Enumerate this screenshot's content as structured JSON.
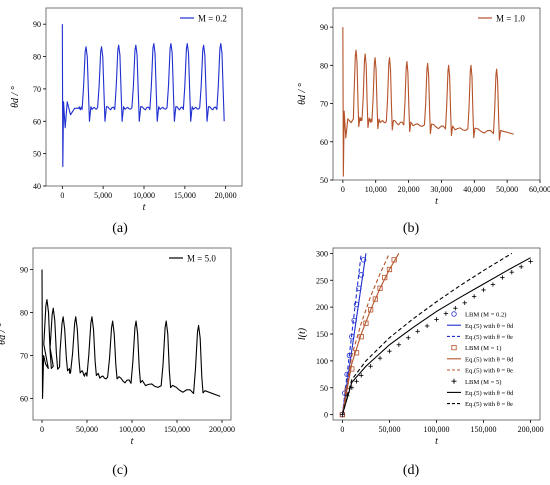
{
  "colors": {
    "blue": "#1f2fd0",
    "brown": "#b5522a",
    "black": "#000000",
    "axis": "#000000",
    "frame": "#555555"
  },
  "chart_data": [
    {
      "panel_label": "(a)",
      "type": "line",
      "xlabel": "t",
      "ylabel": "θd / °",
      "xlim": [
        -2000,
        22000
      ],
      "ylim": [
        40,
        95
      ],
      "xticks": [
        0,
        5000,
        10000,
        15000,
        20000
      ],
      "xtick_labels": [
        "0",
        "5,000",
        "10,000",
        "15,000",
        "20,000"
      ],
      "yticks": [
        40,
        50,
        60,
        70,
        80,
        90
      ],
      "ytick_labels": [
        "40",
        "50",
        "60",
        "70",
        "80",
        "90"
      ],
      "legend_position": "top-right",
      "series": [
        {
          "name": "M = 0.2",
          "color": "blue",
          "startup": [
            [
              0,
              90
            ],
            [
              60,
              46
            ],
            [
              150,
              66
            ],
            [
              350,
              58
            ],
            [
              600,
              66
            ],
            [
              1000,
              62
            ],
            [
              1500,
              64
            ],
            [
              2000,
              64
            ]
          ],
          "baseline": 64,
          "t_end": 19000,
          "peaks": [
            {
              "t": 2900,
              "v": 83
            },
            {
              "t": 4800,
              "v": 83
            },
            {
              "t": 6900,
              "v": 83.5
            },
            {
              "t": 9000,
              "v": 83.5
            },
            {
              "t": 11200,
              "v": 84
            },
            {
              "t": 13300,
              "v": 84
            },
            {
              "t": 15300,
              "v": 84
            },
            {
              "t": 17300,
              "v": 83.5
            },
            {
              "t": 19400,
              "v": 84
            }
          ],
          "peak_width": 300,
          "dip_depth": 4
        }
      ]
    },
    {
      "panel_label": "(b)",
      "type": "line",
      "xlabel": "t",
      "ylabel": "θd / °",
      "xlim": [
        -3000,
        60000
      ],
      "ylim": [
        50,
        95
      ],
      "xticks": [
        0,
        10000,
        20000,
        30000,
        40000,
        50000,
        60000
      ],
      "xtick_labels": [
        "0",
        "10,000",
        "20,000",
        "30,000",
        "40,000",
        "50,000",
        "60,000"
      ],
      "yticks": [
        50,
        60,
        70,
        80,
        90
      ],
      "ytick_labels": [
        "50",
        "60",
        "70",
        "80",
        "90"
      ],
      "legend_position": "top-right",
      "series": [
        {
          "name": "M = 1.0",
          "color": "brown",
          "startup": [
            [
              0,
              90
            ],
            [
              150,
              51
            ],
            [
              400,
              68
            ],
            [
              900,
              61
            ],
            [
              1500,
              66
            ],
            [
              2500,
              65
            ],
            [
              3200,
              66
            ]
          ],
          "baseline_start": 66,
          "baseline_end": 62,
          "t_end": 52000,
          "peaks": [
            {
              "t": 4000,
              "v": 84
            },
            {
              "t": 6800,
              "v": 83
            },
            {
              "t": 9800,
              "v": 82
            },
            {
              "t": 14200,
              "v": 82
            },
            {
              "t": 19500,
              "v": 81
            },
            {
              "t": 25800,
              "v": 80.5
            },
            {
              "t": 32200,
              "v": 80
            },
            {
              "t": 39000,
              "v": 80
            },
            {
              "t": 46800,
              "v": 79
            }
          ],
          "peak_width": 600,
          "dip_depth": 2
        }
      ]
    },
    {
      "panel_label": "(c)",
      "type": "line",
      "xlabel": "t",
      "ylabel": "θd / °",
      "xlim": [
        -10000,
        210000
      ],
      "ylim": [
        55,
        95
      ],
      "xticks": [
        0,
        50000,
        100000,
        150000,
        200000
      ],
      "xtick_labels": [
        "0",
        "50,000",
        "100,000",
        "150,000",
        "200,000"
      ],
      "yticks": [
        60,
        70,
        80,
        90
      ],
      "ytick_labels": [
        "60",
        "70",
        "80",
        "90"
      ],
      "legend_position": "top-right",
      "series": [
        {
          "name": "M = 5.0",
          "color": "black",
          "startup": [
            [
              0,
              90
            ],
            [
              600,
              60
            ],
            [
              1800,
              70
            ],
            [
              4000,
              68
            ],
            [
              7000,
              67
            ]
          ],
          "baseline_start": 67,
          "baseline_end": 60.5,
          "t_end": 198000,
          "peaks": [
            {
              "t": 5500,
              "v": 83
            },
            {
              "t": 12500,
              "v": 81
            },
            {
              "t": 23500,
              "v": 79
            },
            {
              "t": 37500,
              "v": 79
            },
            {
              "t": 55500,
              "v": 79
            },
            {
              "t": 78500,
              "v": 78
            },
            {
              "t": 104500,
              "v": 78
            },
            {
              "t": 138000,
              "v": 78
            },
            {
              "t": 174000,
              "v": 77
            }
          ],
          "peak_width": 3500,
          "dip_depth": 0
        }
      ]
    },
    {
      "panel_label": "(d)",
      "type": "line",
      "xlabel": "t",
      "ylabel": "l(t)",
      "xlim": [
        -10000,
        210000
      ],
      "ylim": [
        -10,
        310
      ],
      "xticks": [
        0,
        50000,
        100000,
        150000,
        200000
      ],
      "xtick_labels": [
        "0",
        "50,000",
        "100,000",
        "150,000",
        "200,000"
      ],
      "yticks": [
        0,
        50,
        100,
        150,
        200,
        250,
        300
      ],
      "ytick_labels": [
        "0",
        "50",
        "100",
        "150",
        "200",
        "250",
        "300"
      ],
      "legend_position": "bottom-right",
      "series": [
        {
          "name": "LBM (M = 0.2)",
          "color": "blue",
          "style": "marker-circle",
          "x": [
            0,
            2500,
            5000,
            7500,
            10000,
            12500,
            15000,
            17500,
            20000,
            22500
          ],
          "y": [
            0,
            40,
            75,
            110,
            145,
            175,
            205,
            235,
            260,
            288
          ]
        },
        {
          "name": "Eq.(5) with θ = θd",
          "color": "blue",
          "style": "solid",
          "x": [
            0,
            25000
          ],
          "y": [
            0,
            300
          ]
        },
        {
          "name": "Eq.(5) with θ = θe",
          "color": "blue",
          "style": "dashed",
          "x": [
            0,
            20000
          ],
          "y": [
            0,
            300
          ]
        },
        {
          "name": "LBM (M = 1)",
          "color": "brown",
          "style": "marker-square",
          "x": [
            0,
            5000,
            10000,
            15000,
            20000,
            25000,
            30000,
            35000,
            40000,
            45000,
            50000,
            55000
          ],
          "y": [
            0,
            45,
            85,
            115,
            145,
            170,
            195,
            215,
            235,
            255,
            270,
            288
          ]
        },
        {
          "name": "Eq.(5) with θ = θd",
          "color": "brown",
          "style": "solid",
          "x": [
            0,
            10000,
            20000,
            30000,
            40000,
            50000,
            60000
          ],
          "y": [
            0,
            95,
            150,
            195,
            235,
            270,
            300
          ]
        },
        {
          "name": "Eq.(5) with θ = θe",
          "color": "brown",
          "style": "dashed",
          "x": [
            0,
            10000,
            20000,
            30000,
            40000,
            50000
          ],
          "y": [
            0,
            110,
            170,
            220,
            262,
            300
          ]
        },
        {
          "name": "LBM (M = 5)",
          "color": "black",
          "style": "marker-plus",
          "x": [
            0,
            5000,
            10000,
            15000,
            20000,
            30000,
            40000,
            50000,
            60000,
            70000,
            80000,
            90000,
            100000,
            110000,
            120000,
            130000,
            140000,
            150000,
            160000,
            170000,
            180000,
            190000,
            200000
          ],
          "y": [
            0,
            35,
            50,
            62,
            73,
            90,
            105,
            118,
            130,
            143,
            155,
            165,
            177,
            188,
            198,
            208,
            220,
            232,
            242,
            255,
            265,
            275,
            285
          ]
        },
        {
          "name": "Eq.(5) with θ = θd",
          "color": "black",
          "style": "solid",
          "x": [
            0,
            10000,
            25000,
            50000,
            75000,
            100000,
            125000,
            150000,
            175000,
            200000
          ],
          "y": [
            0,
            60,
            90,
            130,
            162,
            192,
            218,
            243,
            268,
            292
          ]
        },
        {
          "name": "Eq.(5) with θ = θe",
          "color": "black",
          "style": "dashed",
          "x": [
            0,
            10000,
            25000,
            50000,
            75000,
            100000,
            125000,
            150000,
            180000
          ],
          "y": [
            0,
            65,
            100,
            143,
            178,
            210,
            240,
            268,
            300
          ]
        }
      ]
    }
  ]
}
